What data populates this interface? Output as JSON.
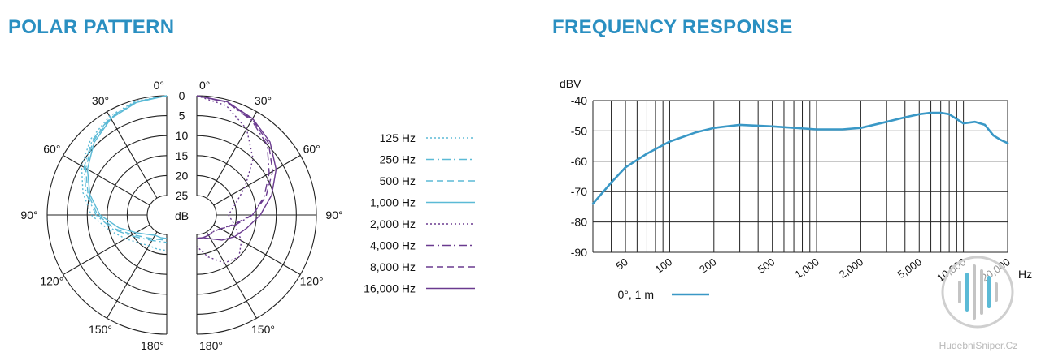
{
  "titles": {
    "polar": "POLAR PATTERN",
    "frequency": "FREQUENCY RESPONSE"
  },
  "watermark": "HudebniSniper.Cz",
  "colors": {
    "title": "#2a8fc1",
    "cyan": "#5bbad6",
    "purple": "#6a3a8f",
    "freq_line": "#3a98c6"
  },
  "chart_data": [
    {
      "type": "polar",
      "angle_labels_left": [
        "0°",
        "30°",
        "60°",
        "90°",
        "120°",
        "150°",
        "180°"
      ],
      "angle_labels_right": [
        "0°",
        "30°",
        "60°",
        "90°",
        "120°",
        "150°",
        "180°"
      ],
      "db_ticks": [
        "0",
        "5",
        "10",
        "15",
        "20",
        "25"
      ],
      "db_unit": "dB",
      "legend": [
        {
          "label": "125 Hz",
          "color": "cyan",
          "dash": "2,3"
        },
        {
          "label": "250 Hz",
          "color": "cyan",
          "dash": "10,4,2,4"
        },
        {
          "label": "500 Hz",
          "color": "cyan",
          "dash": "8,5"
        },
        {
          "label": "1,000 Hz",
          "color": "cyan",
          "dash": ""
        },
        {
          "label": "2,000 Hz",
          "color": "purple",
          "dash": "2,3"
        },
        {
          "label": "4,000 Hz",
          "color": "purple",
          "dash": "10,4,2,4"
        },
        {
          "label": "8,000 Hz",
          "color": "purple",
          "dash": "8,5"
        },
        {
          "label": "16,000 Hz",
          "color": "purple",
          "dash": ""
        }
      ],
      "series": [
        {
          "name": "125 Hz",
          "side": "left",
          "angles": [
            0,
            15,
            30,
            45,
            60,
            75,
            90,
            105,
            120,
            135,
            150,
            165,
            180
          ],
          "attenuation_db": [
            0,
            0.3,
            1.3,
            3,
            5.3,
            8.2,
            11,
            15,
            18,
            20,
            21,
            21,
            21
          ]
        },
        {
          "name": "250 Hz",
          "side": "left",
          "angles": [
            0,
            15,
            30,
            45,
            60,
            75,
            90,
            105,
            120,
            135,
            150,
            165,
            180
          ],
          "attenuation_db": [
            0,
            0.5,
            1.6,
            3.5,
            6,
            9,
            12.2,
            16,
            19.5,
            21.5,
            22.5,
            23,
            23
          ]
        },
        {
          "name": "500 Hz",
          "side": "left",
          "angles": [
            0,
            15,
            30,
            45,
            60,
            75,
            90,
            105,
            120,
            135,
            150,
            165,
            180
          ],
          "attenuation_db": [
            0,
            0.5,
            1.8,
            3.8,
            6.5,
            9.5,
            12.6,
            16.5,
            20,
            22,
            23,
            23.5,
            23.5
          ]
        },
        {
          "name": "1,000 Hz",
          "side": "left",
          "angles": [
            0,
            15,
            30,
            45,
            60,
            75,
            90,
            105,
            120,
            135,
            150,
            165,
            180
          ],
          "attenuation_db": [
            0,
            0.7,
            2,
            4.2,
            7,
            10,
            13.2,
            17.5,
            21,
            23,
            24,
            24,
            24
          ]
        },
        {
          "name": "2,000 Hz",
          "side": "right",
          "angles": [
            0,
            15,
            30,
            45,
            60,
            75,
            90,
            105,
            120,
            135,
            150,
            165,
            180
          ],
          "attenuation_db": [
            0,
            1.5,
            5,
            10,
            16,
            20,
            22,
            20,
            17,
            15,
            16,
            19,
            22
          ]
        },
        {
          "name": "4,000 Hz",
          "side": "right",
          "angles": [
            0,
            15,
            30,
            45,
            60,
            75,
            90,
            105,
            120,
            135,
            150,
            165,
            180
          ],
          "attenuation_db": [
            0,
            0.7,
            2.5,
            5,
            9,
            12.5,
            16,
            20,
            23,
            24,
            24,
            24,
            24
          ]
        },
        {
          "name": "8,000 Hz",
          "side": "right",
          "angles": [
            0,
            15,
            30,
            45,
            60,
            75,
            90,
            105,
            120,
            135,
            150,
            165,
            180
          ],
          "attenuation_db": [
            0,
            0.6,
            2.2,
            4.5,
            8,
            12,
            16,
            20.5,
            23,
            24,
            24,
            24,
            24
          ]
        },
        {
          "name": "16,000 Hz",
          "side": "right",
          "angles": [
            0,
            15,
            30,
            45,
            60,
            75,
            90,
            105,
            120,
            135,
            150,
            165,
            180
          ],
          "attenuation_db": [
            0,
            0.5,
            2,
            4,
            7,
            10.5,
            14,
            17,
            19,
            21,
            23,
            24,
            24
          ]
        }
      ]
    },
    {
      "type": "line",
      "xscale": "log",
      "xlim": [
        30,
        20000
      ],
      "ylim": [
        -90,
        -40
      ],
      "ylabel": "dBV",
      "xlabel": "Hz",
      "y_ticks": [
        -40,
        -50,
        -60,
        -70,
        -80,
        -90
      ],
      "x_tick_labels": [
        {
          "value": 50,
          "label": "50"
        },
        {
          "value": 100,
          "label": "100"
        },
        {
          "value": 200,
          "label": "200"
        },
        {
          "value": 500,
          "label": "500"
        },
        {
          "value": 1000,
          "label": "1,000"
        },
        {
          "value": 2000,
          "label": "2,000"
        },
        {
          "value": 5000,
          "label": "5,000"
        },
        {
          "value": 10000,
          "label": "10,000"
        },
        {
          "value": 20000,
          "label": "20,000"
        }
      ],
      "gridlines": [
        30,
        40,
        50,
        60,
        70,
        80,
        90,
        100,
        200,
        300,
        400,
        500,
        600,
        700,
        800,
        900,
        1000,
        2000,
        3000,
        4000,
        5000,
        6000,
        7000,
        8000,
        9000,
        10000,
        20000
      ],
      "legend_label": "0°, 1 m",
      "series": [
        {
          "name": "0°, 1 m",
          "x": [
            30,
            40,
            50,
            70,
            100,
            150,
            200,
            300,
            500,
            1000,
            1500,
            2000,
            3000,
            4000,
            5000,
            6000,
            7000,
            8000,
            10000,
            12000,
            14000,
            16000,
            18000,
            20000
          ],
          "y": [
            -74,
            -67,
            -62,
            -57.5,
            -53.5,
            -50.5,
            -49,
            -48,
            -48.5,
            -49.5,
            -49.5,
            -49,
            -47,
            -45.5,
            -44.5,
            -44,
            -44,
            -44.5,
            -47.5,
            -47,
            -48,
            -51.5,
            -53,
            -54
          ]
        }
      ]
    }
  ]
}
